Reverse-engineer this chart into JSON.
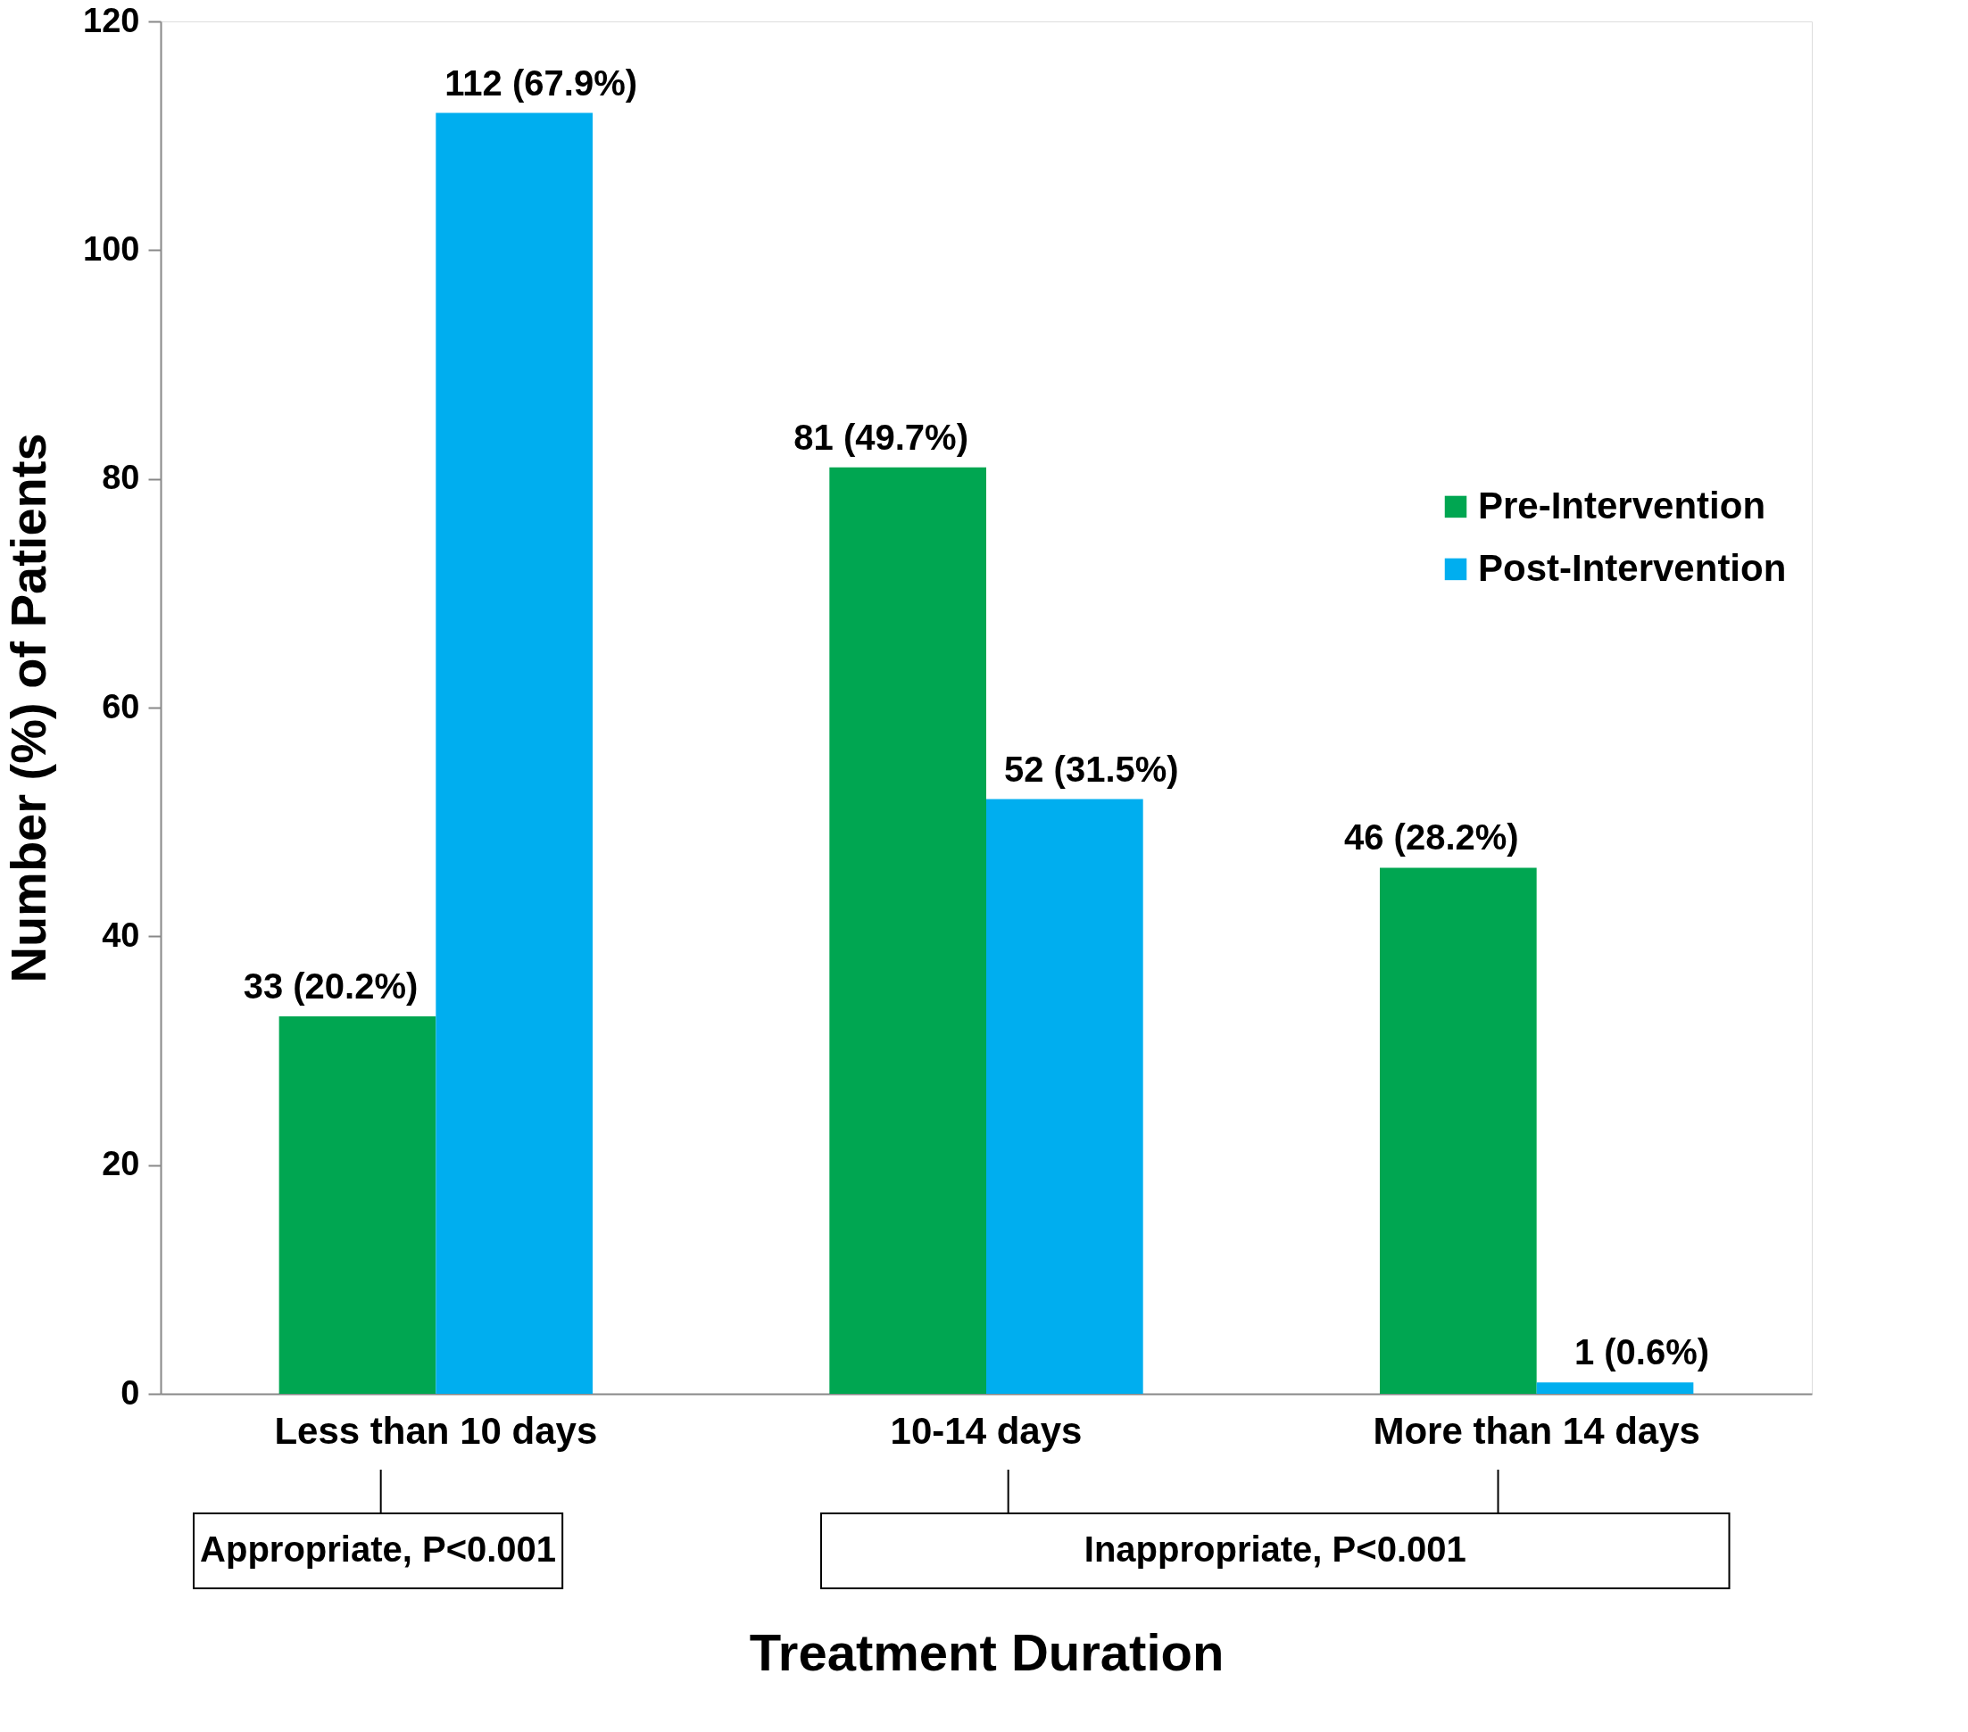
{
  "chart_data": {
    "type": "bar",
    "xlabel": "Treatment Duration",
    "ylabel": "Number (%) of Patients",
    "categories": [
      "Less than 10 days",
      "10-14 days",
      "More than 14 days"
    ],
    "series": [
      {
        "name": "Pre-Intervention",
        "color": "#00a651",
        "values": [
          33,
          81,
          46
        ],
        "value_labels": [
          "33 (20.2%)",
          "81 (49.7%)",
          "46 (28.2%)"
        ]
      },
      {
        "name": "Post-Intervention",
        "color": "#00aeef",
        "values": [
          112,
          52,
          1
        ],
        "value_labels": [
          "112 (67.9%)",
          "52 (31.5%)",
          "1 (0.6%)"
        ]
      }
    ],
    "ylim": [
      0,
      120
    ],
    "yticks": [
      0,
      20,
      40,
      60,
      80,
      100,
      120
    ],
    "grid": false,
    "legend": "right",
    "annotations": [
      "Appropriate,  P<0.001",
      "Inappropriate,  P<0.001"
    ]
  }
}
